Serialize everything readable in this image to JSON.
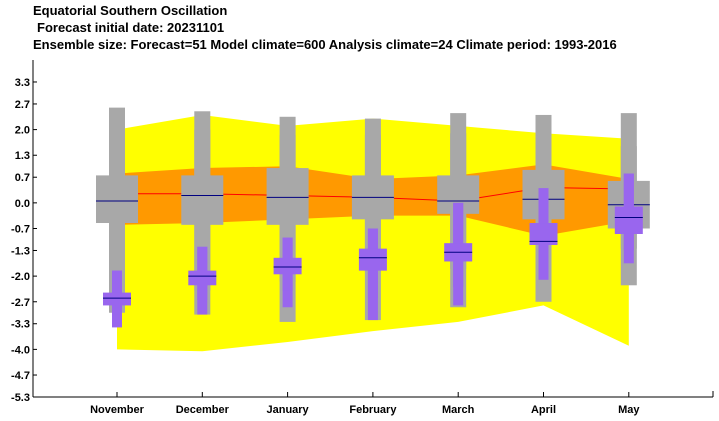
{
  "titles": {
    "line1": "Equatorial Southern Oscillation",
    "line2": "Forecast initial date: 20231101",
    "line3": "Ensemble size: Forecast=51 Model climate=600 Analysis climate=24   Climate period: 1993-2016"
  },
  "colors": {
    "climate_outer": "#ffff00",
    "climate_inner": "#ff9900",
    "model_box": "#a8a8a8",
    "forecast_box": "#9966ee",
    "median_line": "#000080",
    "climate_median_line": "#ff0000",
    "axis": "#000000"
  },
  "chart_data": {
    "type": "boxplot",
    "categories": [
      "November",
      "December",
      "January",
      "February",
      "March",
      "April",
      "May"
    ],
    "ylim": [
      -5.3,
      3.9
    ],
    "yticks": [
      3.3,
      2.7,
      2.0,
      1.3,
      0.7,
      0.0,
      -0.7,
      -1.3,
      -2.0,
      -2.7,
      -3.3,
      -4.0,
      -4.7,
      -5.3
    ],
    "ytick_labels": [
      "3.3",
      "2.7",
      "2.0",
      "1.3",
      "0.7",
      "0.0",
      "-0.7",
      "-1.3",
      "-2.0",
      "-2.7",
      "-3.3",
      "-4.0",
      "-4.7",
      "-5.3"
    ],
    "analysis_climate": {
      "outer_upper": [
        2.0,
        2.4,
        2.1,
        2.3,
        2.1,
        1.9,
        1.75
      ],
      "outer_lower": [
        -4.0,
        -4.05,
        -3.8,
        -3.5,
        -3.25,
        -2.8,
        -3.9
      ],
      "inner_upper": [
        0.8,
        0.95,
        1.0,
        0.65,
        0.75,
        1.05,
        0.65
      ],
      "inner_lower": [
        -0.6,
        -0.55,
        -0.45,
        -0.35,
        -0.35,
        -0.9,
        -0.5
      ],
      "median": [
        0.25,
        0.25,
        0.2,
        0.15,
        0.05,
        0.42,
        0.38
      ]
    },
    "model_climate": [
      {
        "min": -3.0,
        "q10": -2.55,
        "q25": -0.55,
        "median": 0.05,
        "q75": 0.75,
        "q90": 1.95,
        "max": 2.6
      },
      {
        "min": -3.05,
        "q10": -2.4,
        "q25": -0.6,
        "median": 0.2,
        "q75": 0.75,
        "q90": 2.0,
        "max": 2.5
      },
      {
        "min": -3.25,
        "q10": -2.15,
        "q25": -0.6,
        "median": 0.15,
        "q75": 0.95,
        "q90": 1.85,
        "max": 2.35
      },
      {
        "min": -3.2,
        "q10": -1.9,
        "q25": -0.45,
        "median": 0.15,
        "q75": 0.75,
        "q90": 1.85,
        "max": 2.3
      },
      {
        "min": -2.85,
        "q10": -1.8,
        "q25": -0.3,
        "median": 0.05,
        "q75": 0.75,
        "q90": 1.9,
        "max": 2.45
      },
      {
        "min": -2.7,
        "q10": -1.6,
        "q25": -0.45,
        "median": 0.1,
        "q75": 0.9,
        "q90": 1.75,
        "max": 2.4
      },
      {
        "min": -2.25,
        "q10": -1.25,
        "q25": -0.7,
        "median": -0.05,
        "q75": 0.6,
        "q90": 1.55,
        "max": 2.45
      }
    ],
    "forecast": [
      {
        "min": -3.4,
        "q10": -3.05,
        "q25": -2.8,
        "median": -2.6,
        "q75": -2.45,
        "q90": -1.85,
        "max": -1.85
      },
      {
        "min": -3.05,
        "q10": -2.65,
        "q25": -2.25,
        "median": -2.0,
        "q75": -1.85,
        "q90": -1.2,
        "max": -1.2
      },
      {
        "min": -2.85,
        "q10": -2.4,
        "q25": -1.95,
        "median": -1.75,
        "q75": -1.5,
        "q90": -0.95,
        "max": -0.95
      },
      {
        "min": -3.2,
        "q10": -2.6,
        "q25": -1.85,
        "median": -1.5,
        "q75": -1.25,
        "q90": -0.7,
        "max": -0.7
      },
      {
        "min": -2.8,
        "q10": -2.3,
        "q25": -1.6,
        "median": -1.35,
        "q75": -1.1,
        "q90": 0.0,
        "max": 0.0
      },
      {
        "min": -2.1,
        "q10": -1.65,
        "q25": -1.15,
        "median": -1.05,
        "q75": -0.55,
        "q90": 0.4,
        "max": 0.4
      },
      {
        "min": -1.65,
        "q10": -1.3,
        "q25": -0.85,
        "median": -0.4,
        "q75": -0.1,
        "q90": 0.8,
        "max": 0.8
      }
    ]
  }
}
